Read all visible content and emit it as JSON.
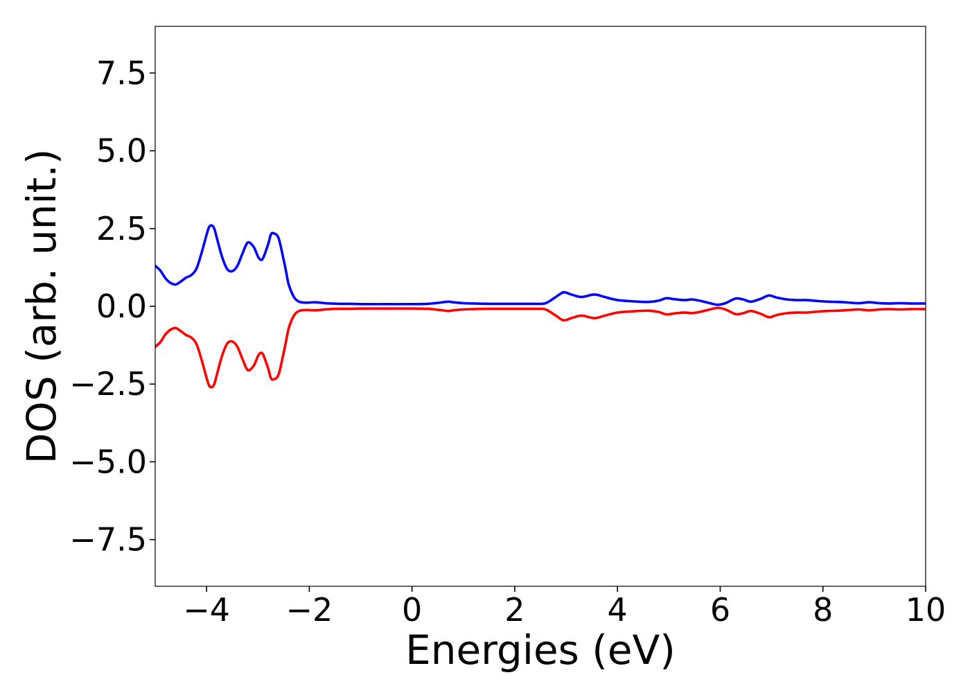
{
  "chart_data": {
    "type": "line",
    "title": "",
    "xlabel": "Energies (eV)",
    "ylabel": "DOS (arb. unit.)",
    "xlim": [
      -5,
      10
    ],
    "ylim": [
      -9,
      9
    ],
    "grid": false,
    "legend": "none",
    "x_ticks": [
      -4,
      -2,
      0,
      2,
      4,
      6,
      8,
      10
    ],
    "x_tick_labels": [
      "−4",
      "−2",
      "0",
      "2",
      "4",
      "6",
      "8",
      "10"
    ],
    "y_ticks": [
      -7.5,
      -5.0,
      -2.5,
      0.0,
      2.5,
      5.0,
      7.5
    ],
    "y_tick_labels": [
      "−7.5",
      "−5.0",
      "−2.5",
      "0.0",
      "2.5",
      "5.0",
      "7.5"
    ],
    "series": [
      {
        "color": "#0000ff",
        "x": [
          -5.0,
          -4.9,
          -4.8,
          -4.7,
          -4.6,
          -4.5,
          -4.4,
          -4.3,
          -4.2,
          -4.1,
          -4.0,
          -3.95,
          -3.9,
          -3.85,
          -3.8,
          -3.7,
          -3.6,
          -3.5,
          -3.4,
          -3.3,
          -3.2,
          -3.1,
          -3.05,
          -3.0,
          -2.95,
          -2.9,
          -2.8,
          -2.75,
          -2.7,
          -2.6,
          -2.5,
          -2.45,
          -2.4,
          -2.3,
          -2.2,
          -2.1,
          -2.0,
          -1.9,
          -1.8,
          -1.7,
          -1.6,
          -1.4,
          -1.2,
          -1.0,
          -0.5,
          0.0,
          0.3,
          0.5,
          0.7,
          0.8,
          1.0,
          1.2,
          1.5,
          2.0,
          2.4,
          2.6,
          2.8,
          2.95,
          3.1,
          3.3,
          3.55,
          3.75,
          4.0,
          4.3,
          4.6,
          4.8,
          4.95,
          5.1,
          5.3,
          5.45,
          5.6,
          5.8,
          5.95,
          6.1,
          6.3,
          6.45,
          6.6,
          6.8,
          6.95,
          7.1,
          7.3,
          7.5,
          7.7,
          7.9,
          8.1,
          8.3,
          8.5,
          8.7,
          8.9,
          9.1,
          9.3,
          9.5,
          9.7,
          10.0
        ],
        "y": [
          1.3,
          1.15,
          0.9,
          0.75,
          0.7,
          0.8,
          0.92,
          1.0,
          1.2,
          1.7,
          2.3,
          2.55,
          2.6,
          2.5,
          2.2,
          1.6,
          1.2,
          1.13,
          1.3,
          1.7,
          2.05,
          1.95,
          1.8,
          1.6,
          1.5,
          1.55,
          2.0,
          2.3,
          2.35,
          2.2,
          1.5,
          1.1,
          0.7,
          0.3,
          0.15,
          0.12,
          0.12,
          0.13,
          0.12,
          0.1,
          0.09,
          0.08,
          0.08,
          0.07,
          0.07,
          0.07,
          0.08,
          0.11,
          0.15,
          0.13,
          0.1,
          0.09,
          0.08,
          0.08,
          0.08,
          0.1,
          0.3,
          0.45,
          0.38,
          0.3,
          0.38,
          0.3,
          0.2,
          0.16,
          0.14,
          0.18,
          0.26,
          0.23,
          0.2,
          0.22,
          0.18,
          0.1,
          0.05,
          0.1,
          0.25,
          0.22,
          0.15,
          0.25,
          0.35,
          0.28,
          0.22,
          0.2,
          0.2,
          0.17,
          0.15,
          0.14,
          0.12,
          0.1,
          0.13,
          0.1,
          0.09,
          0.1,
          0.09,
          0.09
        ]
      },
      {
        "color": "#ff0000",
        "x": [
          -5.0,
          -4.9,
          -4.8,
          -4.7,
          -4.6,
          -4.5,
          -4.4,
          -4.3,
          -4.2,
          -4.1,
          -4.0,
          -3.95,
          -3.9,
          -3.85,
          -3.8,
          -3.7,
          -3.6,
          -3.5,
          -3.4,
          -3.3,
          -3.2,
          -3.1,
          -3.05,
          -3.0,
          -2.95,
          -2.9,
          -2.8,
          -2.75,
          -2.7,
          -2.6,
          -2.5,
          -2.45,
          -2.4,
          -2.3,
          -2.2,
          -2.1,
          -2.0,
          -1.9,
          -1.8,
          -1.7,
          -1.6,
          -1.4,
          -1.2,
          -1.0,
          -0.5,
          0.0,
          0.3,
          0.5,
          0.7,
          0.8,
          1.0,
          1.2,
          1.5,
          2.0,
          2.4,
          2.6,
          2.8,
          2.95,
          3.1,
          3.3,
          3.55,
          3.75,
          4.0,
          4.3,
          4.6,
          4.8,
          4.95,
          5.1,
          5.3,
          5.45,
          5.6,
          5.8,
          5.95,
          6.1,
          6.3,
          6.45,
          6.6,
          6.8,
          6.95,
          7.1,
          7.3,
          7.5,
          7.7,
          7.9,
          8.1,
          8.3,
          8.5,
          8.7,
          8.9,
          9.1,
          9.3,
          9.5,
          9.7,
          10.0
        ],
        "y": [
          -1.3,
          -1.15,
          -0.9,
          -0.75,
          -0.7,
          -0.8,
          -0.92,
          -1.0,
          -1.2,
          -1.7,
          -2.3,
          -2.55,
          -2.6,
          -2.5,
          -2.2,
          -1.6,
          -1.2,
          -1.13,
          -1.3,
          -1.7,
          -2.05,
          -1.95,
          -1.8,
          -1.6,
          -1.5,
          -1.55,
          -2.0,
          -2.3,
          -2.35,
          -2.2,
          -1.5,
          -1.1,
          -0.7,
          -0.3,
          -0.15,
          -0.12,
          -0.12,
          -0.13,
          -0.12,
          -0.1,
          -0.09,
          -0.08,
          -0.08,
          -0.07,
          -0.07,
          -0.07,
          -0.08,
          -0.11,
          -0.15,
          -0.13,
          -0.1,
          -0.09,
          -0.08,
          -0.08,
          -0.08,
          -0.1,
          -0.3,
          -0.45,
          -0.38,
          -0.3,
          -0.38,
          -0.3,
          -0.2,
          -0.16,
          -0.14,
          -0.18,
          -0.26,
          -0.23,
          -0.2,
          -0.22,
          -0.18,
          -0.1,
          -0.05,
          -0.1,
          -0.25,
          -0.22,
          -0.15,
          -0.25,
          -0.35,
          -0.28,
          -0.22,
          -0.2,
          -0.2,
          -0.17,
          -0.15,
          -0.14,
          -0.12,
          -0.1,
          -0.13,
          -0.1,
          -0.09,
          -0.1,
          -0.09,
          -0.09
        ]
      }
    ]
  }
}
